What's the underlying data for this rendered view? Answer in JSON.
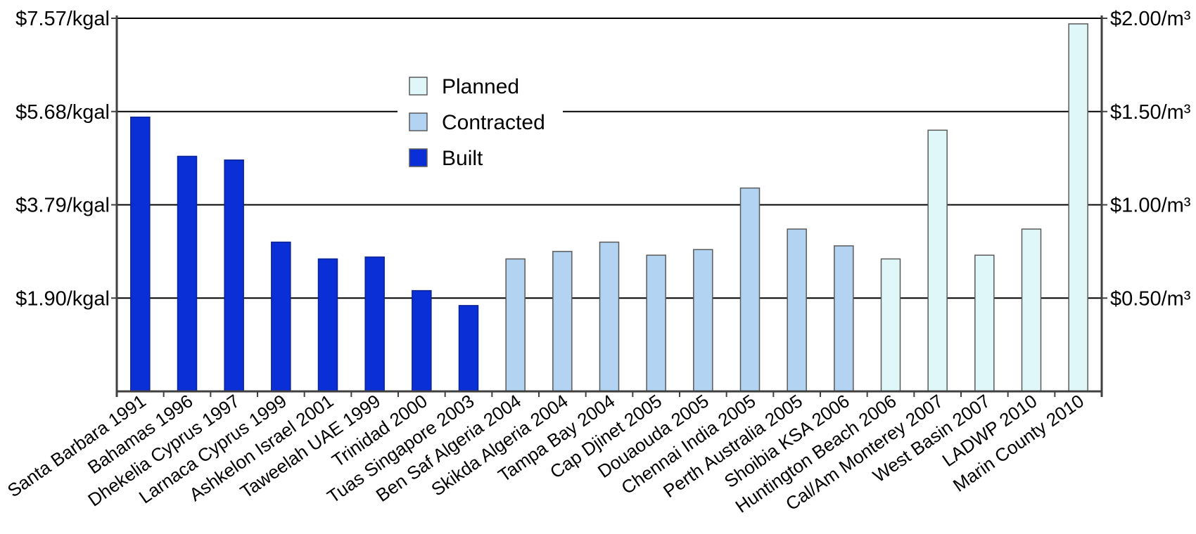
{
  "chart_data": {
    "type": "bar",
    "categories": [
      "Santa Barbara 1991",
      "Bahamas 1996",
      "Dhekelia Cyprus 1997",
      "Larnaca Cyprus 1999",
      "Ashkelon Israel 2001",
      "Taweelah UAE 1999",
      "Trinidad 2000",
      "Tuas Singapore 2003",
      "Ben Saf Algeria 2004",
      "Skikda Algeria 2004",
      "Tampa Bay 2004",
      "Cap Djinet 2005",
      "Douaouda 2005",
      "Chennai India 2005",
      "Perth Australia 2005",
      "Shoibia KSA 2006",
      "Huntington Beach 2006",
      "Cal/Am Monterey 2007",
      "West Basin 2007",
      "LADWP 2010",
      "Marin County 2010"
    ],
    "values": [
      1.47,
      1.26,
      1.24,
      0.8,
      0.71,
      0.72,
      0.54,
      0.46,
      0.71,
      0.75,
      0.8,
      0.73,
      0.76,
      1.09,
      0.87,
      0.78,
      0.71,
      1.4,
      0.73,
      0.87,
      1.97
    ],
    "status": [
      "Built",
      "Built",
      "Built",
      "Built",
      "Built",
      "Built",
      "Built",
      "Built",
      "Contracted",
      "Contracted",
      "Contracted",
      "Contracted",
      "Contracted",
      "Contracted",
      "Contracted",
      "Contracted",
      "Planned",
      "Planned",
      "Planned",
      "Planned",
      "Planned"
    ],
    "legend": {
      "position": "top-center",
      "entries": [
        {
          "label": "Planned",
          "color": "#dff7f8"
        },
        {
          "label": "Contracted",
          "color": "#b2d3f2"
        },
        {
          "label": "Built",
          "color": "#0b2fd6"
        }
      ]
    },
    "ylim": [
      0,
      2.0
    ],
    "left_axis_ticks": [
      "$1.90/kgal",
      "$3.79/kgal",
      "$5.68/kgal",
      "$7.57/kgal"
    ],
    "right_axis_ticks": [
      "$0.50/m³",
      "$1.00/m³",
      "$1.50/m³",
      "$2.00/m³"
    ],
    "tick_values": [
      0.5,
      1.0,
      1.5,
      2.0
    ],
    "grid": true,
    "colors": {
      "Built": "#0b2fd6",
      "Contracted": "#b2d3f2",
      "Planned": "#dff7f8",
      "bar_outline": "#5a5a5a",
      "axis": "#404040",
      "grid": "#000000",
      "text": "#000000"
    }
  }
}
